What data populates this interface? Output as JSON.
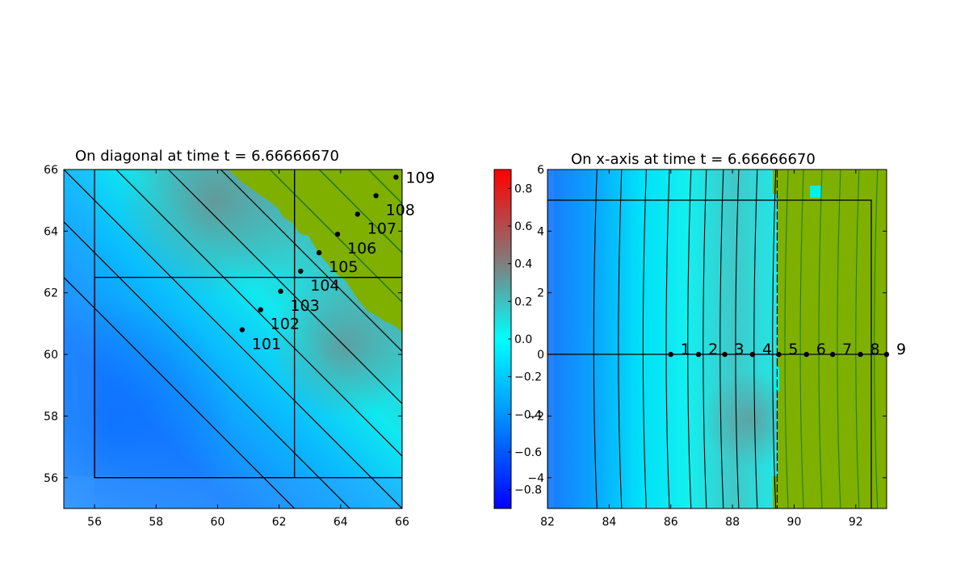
{
  "chart_data": [
    {
      "type": "heatmap",
      "title": "On diagonal at time t =      6.66666670",
      "xlim": [
        55,
        66
      ],
      "ylim": [
        55,
        66
      ],
      "xticks": [
        "56",
        "58",
        "60",
        "62",
        "64",
        "66"
      ],
      "yticks": [
        "56",
        "58",
        "60",
        "62",
        "64",
        "66"
      ],
      "grid": false,
      "patch_boxes": [
        {
          "x": [
            56,
            66
          ],
          "y": [
            56,
            62.5
          ]
        },
        {
          "x": [
            56,
            62.5
          ],
          "y": [
            56,
            66
          ]
        },
        {
          "x": [
            62.5,
            66
          ],
          "y": [
            62.5,
            66
          ]
        }
      ],
      "gauges": [
        {
          "label": "101",
          "x": 60.8,
          "y": 60.8
        },
        {
          "label": "102",
          "x": 61.4,
          "y": 61.45
        },
        {
          "label": "103",
          "x": 62.05,
          "y": 62.05
        },
        {
          "label": "104",
          "x": 62.7,
          "y": 62.7
        },
        {
          "label": "105",
          "x": 63.3,
          "y": 63.3
        },
        {
          "label": "106",
          "x": 63.9,
          "y": 63.9
        },
        {
          "label": "107",
          "x": 64.55,
          "y": 64.55
        },
        {
          "label": "108",
          "x": 65.15,
          "y": 65.15
        },
        {
          "label": "109",
          "x": 65.8,
          "y": 65.75
        }
      ],
      "contour_levels_x_plus_y": [
        117.5,
        119.3,
        121.0,
        122.7,
        124.4,
        126.1,
        127.7,
        129.3,
        130.9,
        132.5
      ],
      "land_region": "upper-right"
    },
    {
      "type": "heatmap",
      "title": "On x-axis at time t =      6.66666670",
      "xlim": [
        82,
        93
      ],
      "ylim": [
        -5,
        6
      ],
      "xticks": [
        "82",
        "84",
        "86",
        "88",
        "90",
        "92"
      ],
      "yticks": [
        "−4",
        "−2",
        "0",
        "2",
        "4",
        "6"
      ],
      "grid": false,
      "patch_box": {
        "x": [
          82,
          92.5
        ],
        "y": [
          -5,
          5
        ]
      },
      "gauge_line_y": 0,
      "gauges": [
        {
          "label": "1",
          "x": 86.0,
          "y": 0
        },
        {
          "label": "2",
          "x": 86.9,
          "y": 0
        },
        {
          "label": "3",
          "x": 87.75,
          "y": 0
        },
        {
          "label": "4",
          "x": 88.65,
          "y": 0
        },
        {
          "label": "5",
          "x": 89.5,
          "y": 0
        },
        {
          "label": "6",
          "x": 90.4,
          "y": 0
        },
        {
          "label": "7",
          "x": 91.25,
          "y": 0
        },
        {
          "label": "8",
          "x": 92.15,
          "y": 0
        },
        {
          "label": "9",
          "x": 93.0,
          "y": 0
        }
      ],
      "contour_x_positions": [
        83.5,
        84.3,
        85.1,
        85.85,
        86.55,
        87.05,
        87.6,
        88.1,
        88.7,
        89.3,
        89.7,
        90.2,
        90.8,
        91.4,
        92.0,
        92.6
      ],
      "shoreline_x": 89.45,
      "land_region": "right"
    }
  ],
  "colorbar": {
    "range": [
      -0.9,
      0.9
    ],
    "ticks": [
      "0.8",
      "0.6",
      "0.4",
      "0.2",
      "0.0",
      "−0.2",
      "−0.4",
      "−0.6",
      "−0.8"
    ],
    "tick_values": [
      0.8,
      0.6,
      0.4,
      0.2,
      0.0,
      -0.2,
      -0.4,
      -0.6,
      -0.8
    ],
    "colors": [
      "#0000ff",
      "#00b4ff",
      "#00ffff",
      "#7f7f7f",
      "#ff0000"
    ]
  },
  "colors": {
    "land": "#7fb000",
    "land_contour": "#1f7f1f"
  }
}
